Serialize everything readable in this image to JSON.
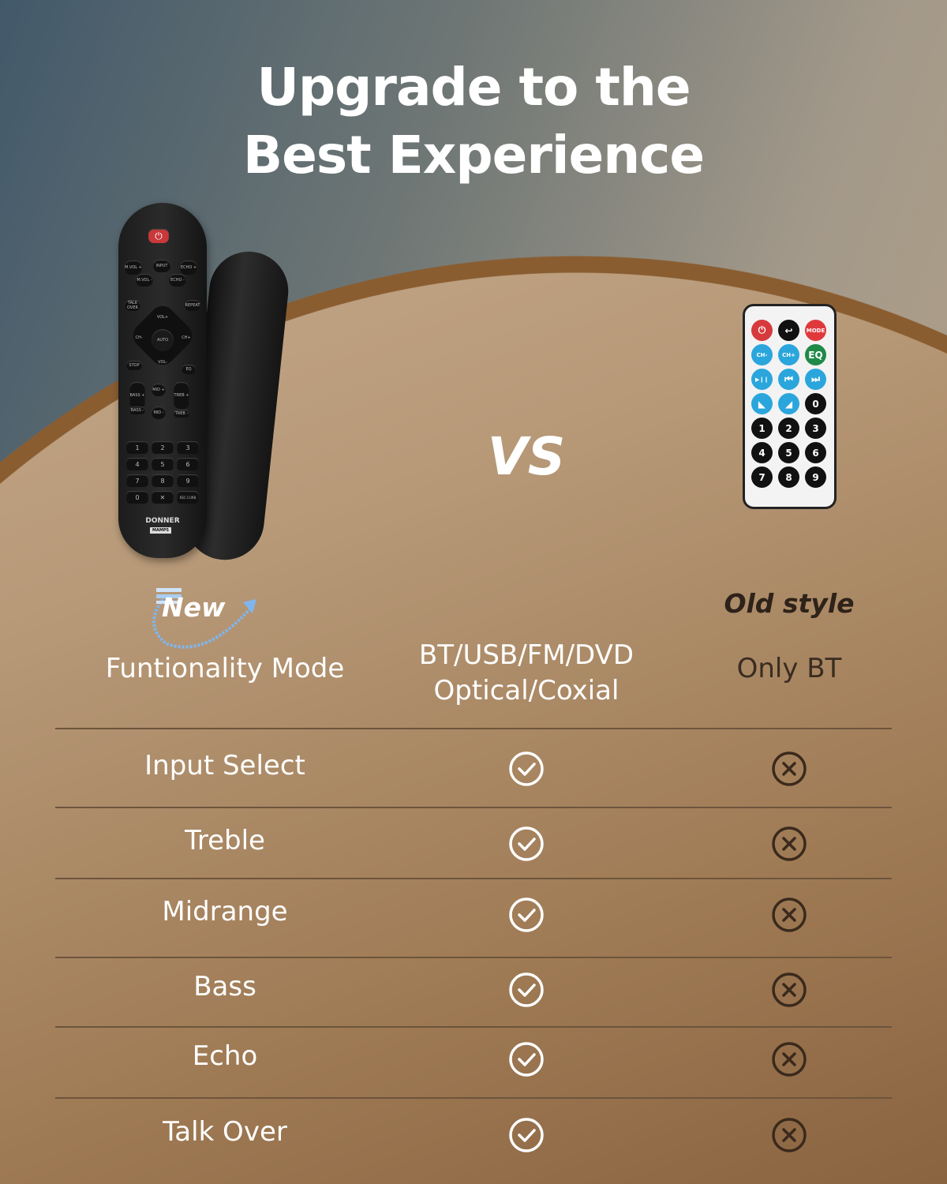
{
  "title": {
    "line1": "Upgrade to the",
    "line2": "Best Experience"
  },
  "vs": "VS",
  "new_remote": {
    "power": "⏻",
    "buttons": [
      "M.VOL +",
      "INPUT",
      "ECHO +",
      "M.VOL -",
      "ECHO -",
      "TALK OVER",
      "REPEAT",
      "VOL+",
      "VOL-",
      "CH-",
      "CH+",
      "AUTO",
      "STOP",
      "EQ",
      "BASS +",
      "BASS -",
      "MID +",
      "MID -",
      "TREB +",
      "TREB -"
    ],
    "keys": [
      "1",
      "2",
      "3",
      "4",
      "5",
      "6",
      "7",
      "8",
      "9",
      "0",
      "✕",
      "REC.CURB"
    ],
    "brand": "DONNER",
    "model": "MAMP5"
  },
  "old_remote": {
    "buttons": [
      {
        "label": "⏻",
        "color": "#d63a3d"
      },
      {
        "label": "↩",
        "color": "#111111"
      },
      {
        "label": "MODE",
        "color": "#e0393c"
      },
      {
        "label": "CH-",
        "color": "#2aa6dc"
      },
      {
        "label": "CH+",
        "color": "#2aa6dc"
      },
      {
        "label": "EQ",
        "color": "#1f8a48"
      },
      {
        "label": "▶❙❙",
        "color": "#2aa6dc"
      },
      {
        "label": "⏮",
        "color": "#2aa6dc"
      },
      {
        "label": "⏭",
        "color": "#2aa6dc"
      },
      {
        "label": "◣",
        "color": "#2aa6dc"
      },
      {
        "label": "◢",
        "color": "#2aa6dc"
      },
      {
        "label": "0",
        "color": "#111111"
      },
      {
        "label": "1",
        "color": "#111111"
      },
      {
        "label": "2",
        "color": "#111111"
      },
      {
        "label": "3",
        "color": "#111111"
      },
      {
        "label": "4",
        "color": "#111111"
      },
      {
        "label": "5",
        "color": "#111111"
      },
      {
        "label": "6",
        "color": "#111111"
      },
      {
        "label": "7",
        "color": "#111111"
      },
      {
        "label": "8",
        "color": "#111111"
      },
      {
        "label": "9",
        "color": "#111111"
      }
    ]
  },
  "header": {
    "new_badge": "New",
    "old_badge": "Old style",
    "row_label": "Funtionality Mode",
    "new_value_1": "BT/USB/FM/DVD",
    "new_value_2": "Optical/Coxial",
    "old_value": "Only BT"
  },
  "rows": [
    {
      "label": "Input Select",
      "new": "check-icon",
      "old": "x-circle-icon"
    },
    {
      "label": "Treble",
      "new": "check-icon",
      "old": "x-circle-icon"
    },
    {
      "label": "Midrange",
      "new": "check-icon",
      "old": "x-circle-icon"
    },
    {
      "label": "Bass",
      "new": "check-icon",
      "old": "x-circle-icon"
    },
    {
      "label": "Echo",
      "new": "check-icon",
      "old": "x-circle-icon"
    },
    {
      "label": "Talk Over",
      "new": "check-icon",
      "old": "x-circle-icon"
    }
  ],
  "colors": {
    "check": "#ffffff",
    "cross": "#3a2a1c",
    "arc": "#8a5d31",
    "arrow": "#7fb6ee"
  }
}
